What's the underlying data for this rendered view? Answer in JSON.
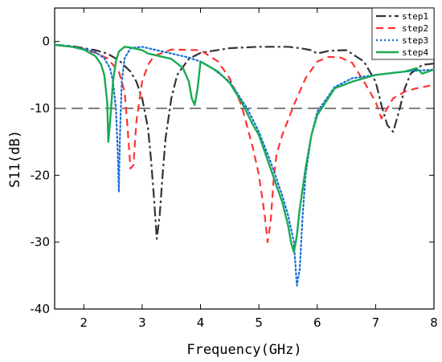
{
  "chart_data": {
    "type": "line",
    "title": "",
    "xlabel": "Frequency(GHz)",
    "ylabel": "S11(dB)",
    "xlim": [
      1.5,
      8
    ],
    "ylim": [
      -40,
      5
    ],
    "x_ticks": [
      2,
      3,
      4,
      5,
      6,
      7,
      8
    ],
    "y_ticks": [
      0,
      -10,
      -20,
      -30,
      -40
    ],
    "x_tick_labels": [
      "2",
      "3",
      "4",
      "5",
      "6",
      "7",
      "8"
    ],
    "y_tick_labels": [
      "0",
      "-10",
      "-20",
      "-30",
      "-40"
    ],
    "reference_line": {
      "y": -10,
      "style": "dashed",
      "color": "#000000"
    },
    "grid": false,
    "legend_position": "top-right",
    "series": [
      {
        "name": "step1",
        "color": "#333333",
        "style": "dashdot",
        "x": [
          1.5,
          1.8,
          2.0,
          2.2,
          2.4,
          2.6,
          2.8,
          2.9,
          3.0,
          3.1,
          3.15,
          3.2,
          3.25,
          3.3,
          3.35,
          3.4,
          3.5,
          3.6,
          3.8,
          4.0,
          4.5,
          5.0,
          5.5,
          5.7,
          5.9,
          6.0,
          6.2,
          6.5,
          6.8,
          7.0,
          7.1,
          7.2,
          7.3,
          7.4,
          7.5,
          7.6,
          7.8,
          8.0
        ],
        "y": [
          -0.5,
          -0.7,
          -1.0,
          -1.3,
          -1.8,
          -2.8,
          -4.5,
          -6.0,
          -8.5,
          -13.0,
          -17.5,
          -23.0,
          -29.5,
          -26.0,
          -20.0,
          -14.5,
          -8.5,
          -5.0,
          -2.6,
          -1.7,
          -1.0,
          -0.8,
          -0.8,
          -1.0,
          -1.3,
          -1.8,
          -1.4,
          -1.3,
          -3.0,
          -6.0,
          -9.5,
          -12.5,
          -13.5,
          -10.5,
          -7.0,
          -4.8,
          -3.5,
          -3.3
        ]
      },
      {
        "name": "step2",
        "color": "#ff3333",
        "style": "dashed",
        "x": [
          1.5,
          1.8,
          2.0,
          2.2,
          2.4,
          2.6,
          2.7,
          2.75,
          2.8,
          2.85,
          2.9,
          3.0,
          3.1,
          3.2,
          3.5,
          4.0,
          4.3,
          4.5,
          4.7,
          4.9,
          5.0,
          5.1,
          5.15,
          5.2,
          5.25,
          5.3,
          5.4,
          5.6,
          5.8,
          6.0,
          6.2,
          6.4,
          6.6,
          6.8,
          7.0,
          7.1,
          7.2,
          7.3,
          7.5,
          7.7,
          8.0
        ],
        "y": [
          -0.5,
          -0.8,
          -1.2,
          -1.7,
          -2.5,
          -4.5,
          -7.5,
          -13.0,
          -19.0,
          -18.5,
          -12.0,
          -6.0,
          -3.5,
          -2.2,
          -1.2,
          -1.3,
          -3.0,
          -5.5,
          -9.5,
          -16.0,
          -20.0,
          -26.0,
          -30.0,
          -27.0,
          -21.0,
          -17.0,
          -14.0,
          -9.5,
          -5.5,
          -3.0,
          -2.3,
          -2.4,
          -3.2,
          -6.0,
          -9.0,
          -11.5,
          -10.0,
          -8.5,
          -7.5,
          -7.0,
          -6.5
        ]
      },
      {
        "name": "step3",
        "color": "#1a6fd6",
        "style": "dotted",
        "x": [
          1.5,
          1.8,
          2.0,
          2.2,
          2.35,
          2.45,
          2.5,
          2.55,
          2.58,
          2.6,
          2.62,
          2.65,
          2.7,
          2.8,
          3.0,
          3.2,
          3.4,
          3.8,
          4.0,
          4.2,
          4.5,
          4.8,
          5.0,
          5.2,
          5.4,
          5.5,
          5.6,
          5.65,
          5.7,
          5.75,
          5.8,
          5.9,
          6.0,
          6.3,
          6.6,
          7.0,
          7.5,
          8.0
        ],
        "y": [
          -0.5,
          -0.8,
          -1.1,
          -1.6,
          -2.5,
          -4.0,
          -6.0,
          -10.0,
          -16.0,
          -22.5,
          -14.0,
          -6.0,
          -2.5,
          -1.0,
          -0.8,
          -1.2,
          -1.6,
          -2.4,
          -3.0,
          -4.0,
          -6.0,
          -10.0,
          -13.5,
          -18.0,
          -23.0,
          -26.0,
          -30.0,
          -36.5,
          -34.0,
          -26.0,
          -20.0,
          -14.0,
          -10.5,
          -6.8,
          -5.5,
          -5.0,
          -4.5,
          -4.2
        ]
      },
      {
        "name": "step4",
        "color": "#1aaa55",
        "style": "solid",
        "x": [
          1.5,
          1.8,
          2.0,
          2.2,
          2.3,
          2.35,
          2.4,
          2.42,
          2.45,
          2.5,
          2.55,
          2.6,
          2.7,
          2.8,
          2.9,
          3.0,
          3.1,
          3.2,
          3.5,
          3.7,
          3.8,
          3.85,
          3.9,
          3.95,
          4.0,
          4.1,
          4.3,
          4.5,
          4.7,
          4.9,
          5.0,
          5.2,
          5.4,
          5.5,
          5.55,
          5.6,
          5.65,
          5.7,
          5.8,
          5.9,
          6.0,
          6.3,
          6.6,
          7.0,
          7.5,
          7.7,
          7.8,
          8.0
        ],
        "y": [
          -0.5,
          -0.8,
          -1.2,
          -2.2,
          -3.5,
          -5.0,
          -9.0,
          -15.0,
          -12.0,
          -6.0,
          -3.0,
          -1.5,
          -0.8,
          -0.9,
          -1.1,
          -1.3,
          -1.8,
          -2.0,
          -2.6,
          -4.0,
          -6.0,
          -8.5,
          -9.5,
          -7.0,
          -3.0,
          -3.5,
          -4.5,
          -6.2,
          -9.0,
          -12.5,
          -14.0,
          -19.0,
          -24.0,
          -27.5,
          -30.0,
          -31.5,
          -29.0,
          -25.0,
          -19.0,
          -14.0,
          -11.0,
          -7.0,
          -6.0,
          -5.0,
          -4.5,
          -4.0,
          -4.8,
          -4.2
        ]
      }
    ]
  }
}
